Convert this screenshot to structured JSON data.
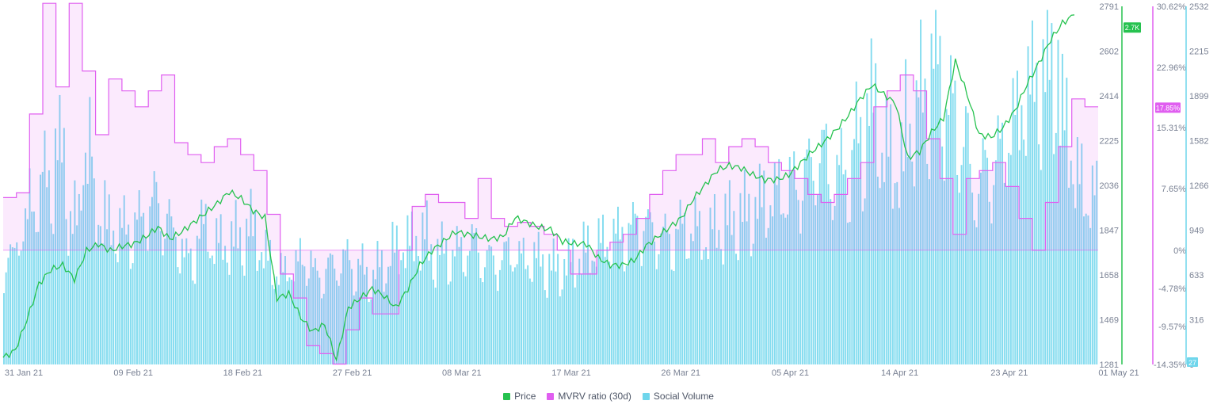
{
  "chart_data": {
    "type": "line",
    "x_dates": [
      "31 Jan 21",
      "09 Feb 21",
      "18 Feb 21",
      "27 Feb 21",
      "08 Mar 21",
      "17 Mar 21",
      "26 Mar 21",
      "05 Apr 21",
      "14 Apr 21",
      "23 Apr 21",
      "01 May 21"
    ],
    "price_axis": {
      "ticks": [
        "2791",
        "2602",
        "2414",
        "2225",
        "2036",
        "1847",
        "1658",
        "1469",
        "1281"
      ],
      "range": [
        1281,
        2791
      ],
      "current_badge": "2.7K"
    },
    "mvrv_axis": {
      "ticks": [
        "30.62%",
        "22.96%",
        "15.31%",
        "7.65%",
        "0%",
        "-4.78%",
        "-9.57%",
        "-14.35%"
      ],
      "current_badge": "17.85%"
    },
    "volume_axis": {
      "ticks": [
        "2532",
        "2215",
        "1899",
        "1582",
        "1266",
        "949",
        "633",
        "316",
        "0"
      ],
      "range": [
        0,
        2532
      ],
      "current_badge": "27"
    },
    "series": [
      {
        "name": "Price",
        "color": "#26c24f",
        "approx_daily_values": [
          1310,
          1340,
          1470,
          1620,
          1680,
          1700,
          1640,
          1760,
          1790,
          1760,
          1780,
          1790,
          1820,
          1860,
          1810,
          1840,
          1880,
          1920,
          1960,
          2010,
          1980,
          1930,
          1900,
          1560,
          1580,
          1480,
          1420,
          1450,
          1300,
          1520,
          1560,
          1600,
          1570,
          1520,
          1600,
          1700,
          1760,
          1800,
          1840,
          1830,
          1820,
          1810,
          1820,
          1900,
          1880,
          1860,
          1850,
          1800,
          1790,
          1790,
          1730,
          1700,
          1700,
          1720,
          1780,
          1820,
          1860,
          1900,
          1980,
          2040,
          2100,
          2120,
          2110,
          2080,
          2060,
          2060,
          2080,
          2130,
          2180,
          2220,
          2270,
          2330,
          2400,
          2460,
          2420,
          2380,
          2150,
          2180,
          2260,
          2320,
          2560,
          2420,
          2250,
          2240,
          2280,
          2350,
          2460,
          2550,
          2650,
          2720,
          2755
        ]
      },
      {
        "name": "MVRV ratio (30d)",
        "color": "#e05ef0",
        "approx_daily_values": [
          6.6,
          7.2,
          17.1,
          31.0,
          20.5,
          31.0,
          22.5,
          14.5,
          21.5,
          20.0,
          18.0,
          20.0,
          22.0,
          13.5,
          12.0,
          11.0,
          13.0,
          14.0,
          12.0,
          10.0,
          4.5,
          -3.0,
          -6.0,
          -12.0,
          -13.0,
          -14.3,
          -10.0,
          -6.0,
          -8.0,
          -8.0,
          0.0,
          5.5,
          7.0,
          6.0,
          6.0,
          4.0,
          9.0,
          4.0,
          3.0,
          3.5,
          3.0,
          2.0,
          0.0,
          -3.0,
          -3.0,
          0.0,
          1.0,
          2.0,
          4.0,
          7.0,
          10.0,
          12.0,
          12.0,
          14.0,
          11.0,
          13.0,
          14.0,
          13.0,
          11.0,
          10.0,
          9.0,
          7.0,
          6.0,
          7.0,
          9.0,
          11.0,
          18.0,
          20.0,
          22.0,
          20.0,
          14.0,
          9.0,
          2.0,
          9.0,
          10.0,
          11.0,
          8.0,
          4.0,
          0.0,
          6.0,
          13.0,
          19.0,
          18.0
        ]
      },
      {
        "name": "Social Volume",
        "color": "#6fd6ec",
        "approx_daily_values": [
          700,
          900,
          1100,
          1250,
          1400,
          950,
          1400,
          1000,
          900,
          900,
          950,
          1100,
          1000,
          850,
          700,
          900,
          800,
          800,
          850,
          900,
          700,
          600,
          650,
          700,
          600,
          650,
          700,
          650,
          600,
          650,
          750,
          800,
          850,
          750,
          750,
          750,
          800,
          700,
          700,
          750,
          700,
          700,
          650,
          650,
          700,
          750,
          800,
          850,
          900,
          950,
          900,
          850,
          900,
          900,
          850,
          900,
          950,
          1000,
          1050,
          1100,
          1150,
          1200,
          1300,
          1400,
          1250,
          1300,
          1500,
          1700,
          1400,
          1300,
          1600,
          1800,
          2000,
          1700,
          1500,
          1200,
          1300,
          1400,
          1600,
          1800,
          1900,
          2000,
          1600,
          1200,
          1100
        ]
      }
    ],
    "legend": [
      "Price",
      "MVRV ratio (30d)",
      "Social Volume"
    ],
    "grid": false,
    "legend_position": "bottom-center"
  }
}
